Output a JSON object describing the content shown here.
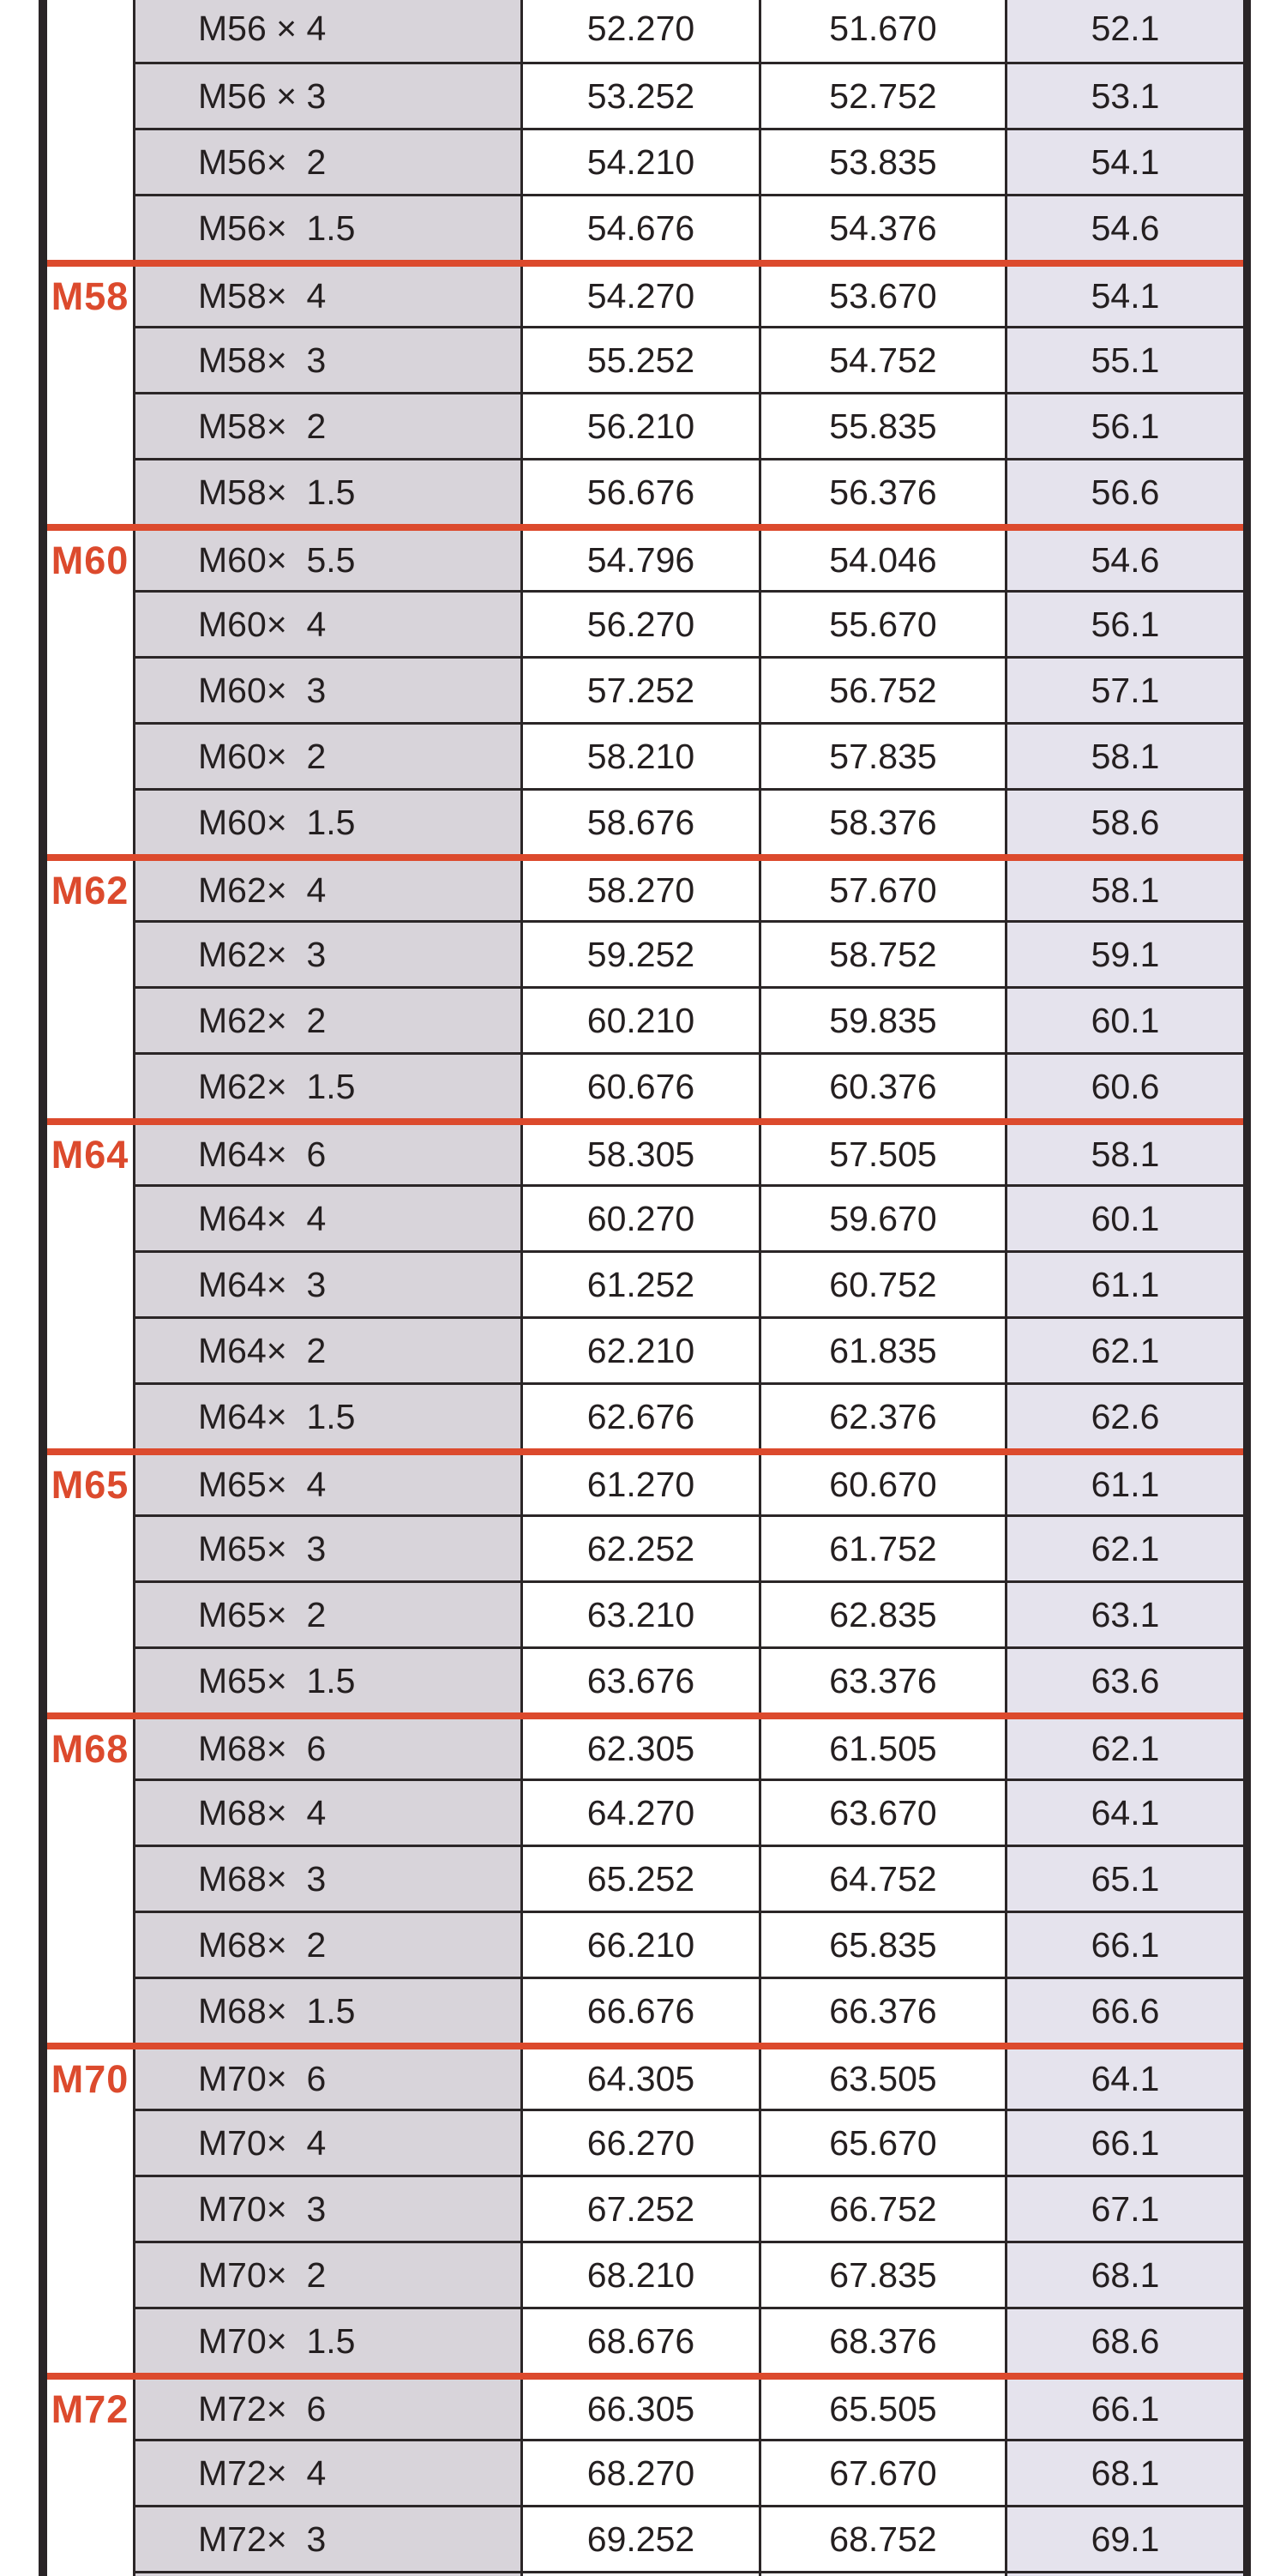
{
  "colors": {
    "accent_red": "#dc4a2d",
    "grid_line": "#2b2627",
    "outer_border": "#2a2527",
    "designation_column_bg": "#d8d4da",
    "last_column_bg": "#e5e3ed",
    "text": "#241f20",
    "page_bg": "#ffffff"
  },
  "table": {
    "groups": [
      {
        "label": "",
        "rows": [
          {
            "designation": "M56 × 4",
            "values": [
              "52.270",
              "51.670",
              "52.1"
            ]
          },
          {
            "designation": "M56 × 3",
            "values": [
              "53.252",
              "52.752",
              "53.1"
            ]
          },
          {
            "designation": "M56×  2",
            "values": [
              "54.210",
              "53.835",
              "54.1"
            ]
          },
          {
            "designation": "M56×  1.5",
            "values": [
              "54.676",
              "54.376",
              "54.6"
            ]
          }
        ]
      },
      {
        "label": "M58",
        "rows": [
          {
            "designation": "M58×  4",
            "values": [
              "54.270",
              "53.670",
              "54.1"
            ]
          },
          {
            "designation": "M58×  3",
            "values": [
              "55.252",
              "54.752",
              "55.1"
            ]
          },
          {
            "designation": "M58×  2",
            "values": [
              "56.210",
              "55.835",
              "56.1"
            ]
          },
          {
            "designation": "M58×  1.5",
            "values": [
              "56.676",
              "56.376",
              "56.6"
            ]
          }
        ]
      },
      {
        "label": "M60",
        "rows": [
          {
            "designation": "M60×  5.5",
            "values": [
              "54.796",
              "54.046",
              "54.6"
            ]
          },
          {
            "designation": "M60×  4",
            "values": [
              "56.270",
              "55.670",
              "56.1"
            ]
          },
          {
            "designation": "M60×  3",
            "values": [
              "57.252",
              "56.752",
              "57.1"
            ]
          },
          {
            "designation": "M60×  2",
            "values": [
              "58.210",
              "57.835",
              "58.1"
            ]
          },
          {
            "designation": "M60×  1.5",
            "values": [
              "58.676",
              "58.376",
              "58.6"
            ]
          }
        ]
      },
      {
        "label": "M62",
        "rows": [
          {
            "designation": "M62×  4",
            "values": [
              "58.270",
              "57.670",
              "58.1"
            ]
          },
          {
            "designation": "M62×  3",
            "values": [
              "59.252",
              "58.752",
              "59.1"
            ]
          },
          {
            "designation": "M62×  2",
            "values": [
              "60.210",
              "59.835",
              "60.1"
            ]
          },
          {
            "designation": "M62×  1.5",
            "values": [
              "60.676",
              "60.376",
              "60.6"
            ]
          }
        ]
      },
      {
        "label": "M64",
        "rows": [
          {
            "designation": "M64×  6",
            "values": [
              "58.305",
              "57.505",
              "58.1"
            ]
          },
          {
            "designation": "M64×  4",
            "values": [
              "60.270",
              "59.670",
              "60.1"
            ]
          },
          {
            "designation": "M64×  3",
            "values": [
              "61.252",
              "60.752",
              "61.1"
            ]
          },
          {
            "designation": "M64×  2",
            "values": [
              "62.210",
              "61.835",
              "62.1"
            ]
          },
          {
            "designation": "M64×  1.5",
            "values": [
              "62.676",
              "62.376",
              "62.6"
            ]
          }
        ]
      },
      {
        "label": "M65",
        "rows": [
          {
            "designation": "M65×  4",
            "values": [
              "61.270",
              "60.670",
              "61.1"
            ]
          },
          {
            "designation": "M65×  3",
            "values": [
              "62.252",
              "61.752",
              "62.1"
            ]
          },
          {
            "designation": "M65×  2",
            "values": [
              "63.210",
              "62.835",
              "63.1"
            ]
          },
          {
            "designation": "M65×  1.5",
            "values": [
              "63.676",
              "63.376",
              "63.6"
            ]
          }
        ]
      },
      {
        "label": "M68",
        "rows": [
          {
            "designation": "M68×  6",
            "values": [
              "62.305",
              "61.505",
              "62.1"
            ]
          },
          {
            "designation": "M68×  4",
            "values": [
              "64.270",
              "63.670",
              "64.1"
            ]
          },
          {
            "designation": "M68×  3",
            "values": [
              "65.252",
              "64.752",
              "65.1"
            ]
          },
          {
            "designation": "M68×  2",
            "values": [
              "66.210",
              "65.835",
              "66.1"
            ]
          },
          {
            "designation": "M68×  1.5",
            "values": [
              "66.676",
              "66.376",
              "66.6"
            ]
          }
        ]
      },
      {
        "label": "M70",
        "rows": [
          {
            "designation": "M70×  6",
            "values": [
              "64.305",
              "63.505",
              "64.1"
            ]
          },
          {
            "designation": "M70×  4",
            "values": [
              "66.270",
              "65.670",
              "66.1"
            ]
          },
          {
            "designation": "M70×  3",
            "values": [
              "67.252",
              "66.752",
              "67.1"
            ]
          },
          {
            "designation": "M70×  2",
            "values": [
              "68.210",
              "67.835",
              "68.1"
            ]
          },
          {
            "designation": "M70×  1.5",
            "values": [
              "68.676",
              "68.376",
              "68.6"
            ]
          }
        ]
      },
      {
        "label": "M72",
        "rows": [
          {
            "designation": "M72×  6",
            "values": [
              "66.305",
              "65.505",
              "66.1"
            ]
          },
          {
            "designation": "M72×  4",
            "values": [
              "68.270",
              "67.670",
              "68.1"
            ]
          },
          {
            "designation": "M72×  3",
            "values": [
              "69.252",
              "68.752",
              "69.1"
            ]
          },
          {
            "designation": "",
            "values": [
              "",
              "",
              ""
            ]
          }
        ]
      }
    ]
  }
}
